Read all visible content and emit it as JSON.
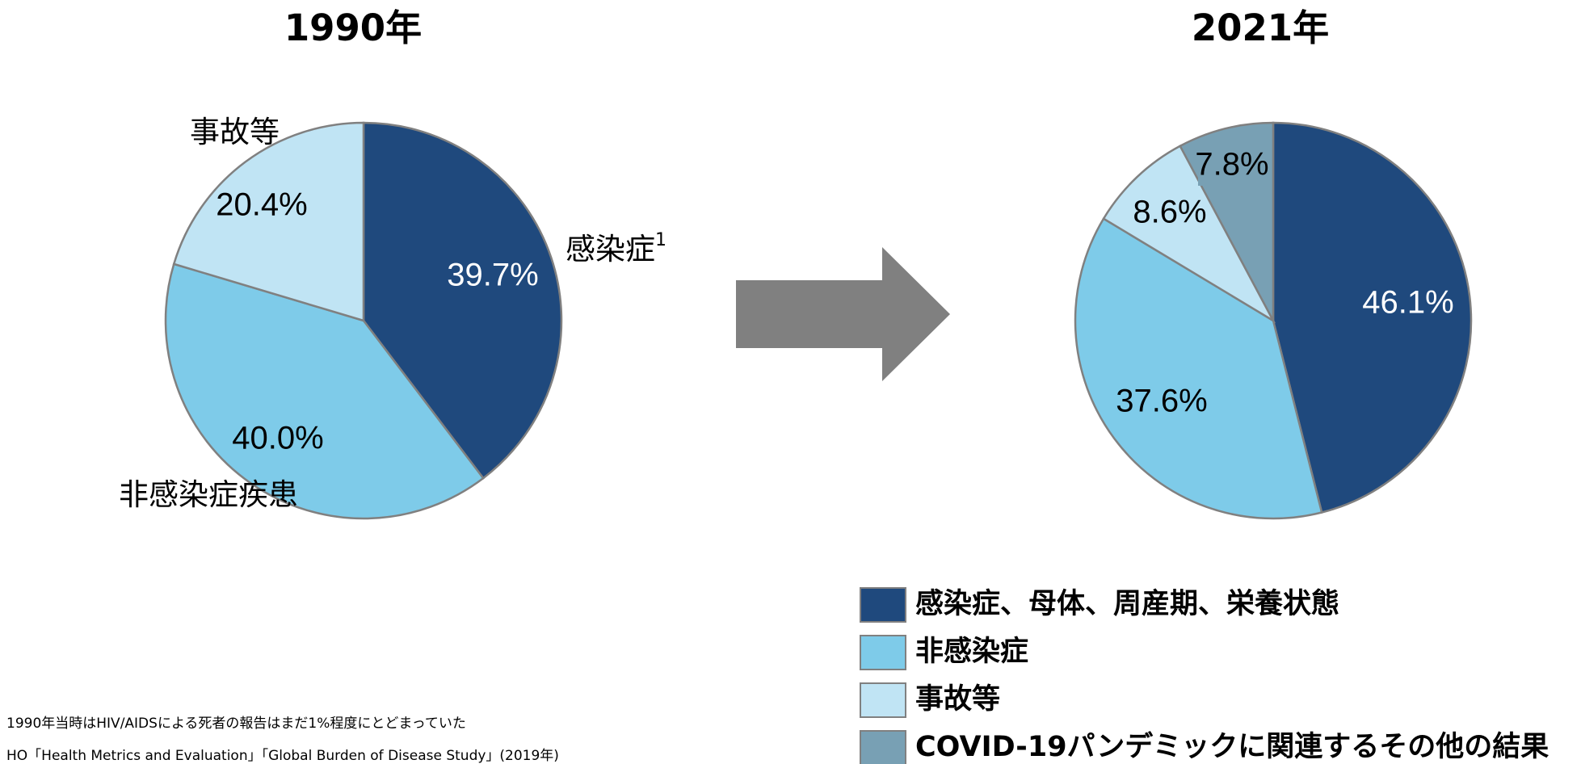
{
  "chart_data": [
    {
      "type": "pie",
      "title": "1990年",
      "categories": [
        "感染症",
        "非感染症疾患",
        "事故等"
      ],
      "footnote_marks": [
        "1",
        null,
        null
      ],
      "values": [
        39.7,
        40.0,
        20.4
      ],
      "value_labels": [
        "39.7%",
        "40.0%",
        "20.4%"
      ],
      "colors": [
        "#1f497d",
        "#7ecbe9",
        "#c0e4f4"
      ]
    },
    {
      "type": "pie",
      "title": "2021年",
      "categories": [
        "感染症、母体、周産期、栄養状態",
        "非感染症",
        "事故等",
        "COVID-19パンデミックに関連するその他の結果"
      ],
      "values": [
        46.1,
        37.6,
        8.6,
        7.8
      ],
      "value_labels": [
        "46.1%",
        "37.6%",
        "8.6%",
        "7.8%"
      ],
      "colors": [
        "#1f497d",
        "#7ecbe9",
        "#c0e4f4",
        "#78a0b4"
      ],
      "legend": "bottom-right"
    }
  ],
  "footnotes": [
    "1990年当時はHIV/AIDSによる死者の報告はまだ1%程度にとどまっていた",
    "HO「Health Metrics and Evaluation」「Global Burden of Disease Study」(2019年)"
  ]
}
